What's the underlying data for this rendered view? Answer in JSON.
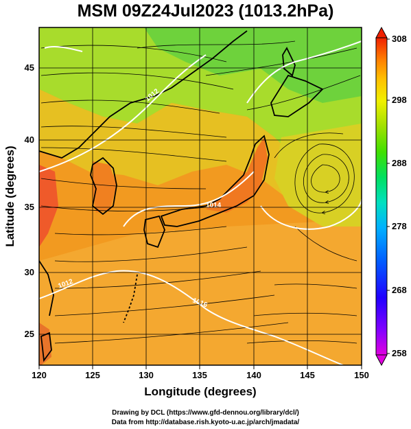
{
  "title": "MSM 09Z24Jul2023 (1013.2hPa)",
  "axes": {
    "xlabel": "Longitude (degrees)",
    "ylabel": "Latitude (degrees)",
    "x_ticks": [
      "120",
      "125",
      "130",
      "135",
      "140",
      "145",
      "150"
    ],
    "y_ticks": [
      "25",
      "30",
      "35",
      "40",
      "45"
    ]
  },
  "colorbar": {
    "tick_labels": [
      "258",
      "268",
      "278",
      "288",
      "298",
      "308"
    ],
    "colors": [
      "#e000e0",
      "#8000ff",
      "#2000ff",
      "#0060ff",
      "#00b0ff",
      "#00e0c0",
      "#00e060",
      "#40e000",
      "#a0e000",
      "#f0f000",
      "#ffc000",
      "#ff8000",
      "#ff5000",
      "#f02000"
    ]
  },
  "contour_labels": [
    "1012",
    "1016",
    "1012",
    "1014"
  ],
  "footer": {
    "line1": "Drawing by DCL (https://www.gfd-dennou.org/library/dcl/)",
    "line2": "Data from http://database.rish.kyoto-u.ac.jp/arch/jmadata/"
  }
}
